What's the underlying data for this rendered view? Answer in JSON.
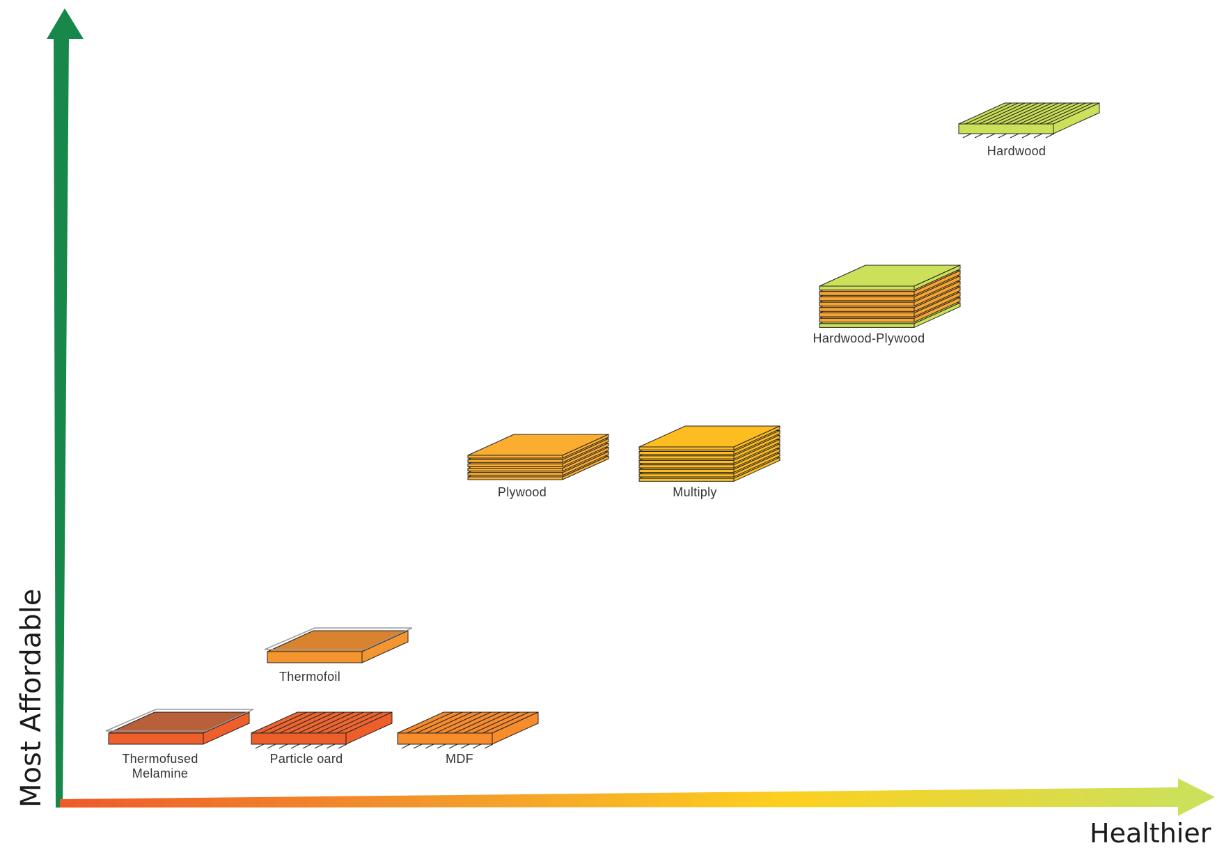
{
  "axes": {
    "y_title": "Most Affordable",
    "x_title": "Healthier",
    "y_color": "#17874a",
    "x_gradient": [
      "#ee5a2a",
      "#f39a2b",
      "#fdd01f",
      "#cde05a"
    ]
  },
  "materials": [
    {
      "id": "thermofused-melamine",
      "label_line1": "Thermofused",
      "label_line2": "Melamine",
      "style": "laminate",
      "top": "#b8603a",
      "side": "#ee5f2b",
      "layers": 1,
      "rank_affordable": 1,
      "rank_healthier": 1
    },
    {
      "id": "particle-board",
      "label_line1": "Particle oard",
      "label_line2": "",
      "style": "hatched",
      "top": "#ec6530",
      "side": "#ec5e2a",
      "layers": 1,
      "rank_affordable": 1,
      "rank_healthier": 2
    },
    {
      "id": "mdf",
      "label_line1": "MDF",
      "label_line2": "",
      "style": "hatched",
      "top": "#f58a2e",
      "side": "#f68c2c",
      "layers": 1,
      "rank_affordable": 1,
      "rank_healthier": 3
    },
    {
      "id": "thermofoil",
      "label_line1": "Thermofoil",
      "label_line2": "",
      "style": "laminate",
      "top": "#d9832e",
      "side": "#f4962f",
      "layers": 1,
      "rank_affordable": 2,
      "rank_healthier": 2
    },
    {
      "id": "plywood",
      "label_line1": "Plywood",
      "label_line2": "",
      "style": "stacked",
      "top": "#fbad30",
      "side": "#fbad30",
      "layers": 6,
      "rank_affordable": 3,
      "rank_healthier": 4
    },
    {
      "id": "multiply",
      "label_line1": "Multiply",
      "label_line2": "",
      "style": "stacked",
      "top": "#fdbc20",
      "side": "#fdbc20",
      "layers": 8,
      "rank_affordable": 3,
      "rank_healthier": 5
    },
    {
      "id": "hardwood-plywood",
      "label_line1": "Hardwood-Plywood",
      "label_line2": "",
      "style": "veneer-stack",
      "top": "#cde05a",
      "side": "#f6a531",
      "layers": 8,
      "rank_affordable": 4,
      "rank_healthier": 6
    },
    {
      "id": "hardwood",
      "label_line1": "Hardwood",
      "label_line2": "",
      "style": "grain",
      "top": "#c9dd55",
      "side": "#cde05a",
      "layers": 1,
      "rank_affordable": 5,
      "rank_healthier": 7
    }
  ]
}
